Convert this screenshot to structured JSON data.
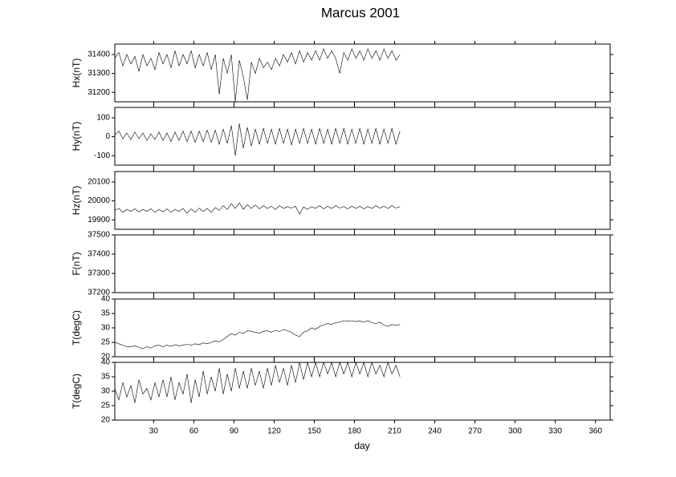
{
  "chart_data": {
    "type": "line",
    "title": "Marcus 2001",
    "xlabel": "day",
    "xlim": [
      1,
      371
    ],
    "xticks": [
      30,
      60,
      90,
      120,
      150,
      180,
      210,
      240,
      270,
      300,
      330,
      360
    ],
    "x": [
      1,
      4,
      7,
      10,
      13,
      16,
      19,
      22,
      25,
      28,
      31,
      34,
      37,
      40,
      43,
      46,
      49,
      52,
      55,
      58,
      61,
      64,
      67,
      70,
      73,
      76,
      79,
      82,
      85,
      88,
      91,
      94,
      97,
      100,
      103,
      106,
      109,
      112,
      115,
      118,
      121,
      124,
      127,
      130,
      133,
      136,
      139,
      142,
      145,
      148,
      151,
      154,
      157,
      160,
      163,
      166,
      169,
      172,
      175,
      178,
      181,
      184,
      187,
      190,
      193,
      196,
      199,
      202,
      205,
      208,
      211,
      214
    ],
    "panels": [
      {
        "ylabel": "Hx(nT)",
        "ylim": [
          31150,
          31455
        ],
        "yticks": [
          31200,
          31300,
          31400
        ],
        "series": [
          {
            "color": "#000000",
            "values": [
              31380,
              31410,
              31340,
              31400,
              31350,
              31390,
              31310,
              31400,
              31340,
              31380,
              31320,
              31410,
              31350,
              31400,
              31330,
              31420,
              31340,
              31400,
              31350,
              31420,
              31330,
              31400,
              31340,
              31410,
              31320,
              31400,
              31190,
              31380,
              31300,
              31400,
              31150,
              31370,
              31280,
              31160,
              31360,
              31300,
              31380,
              31330,
              31360,
              31320,
              31380,
              31340,
              31400,
              31360,
              31410,
              31350,
              31420,
              31360,
              31410,
              31370,
              31420,
              31370,
              31430,
              31380,
              31420,
              31380,
              31300,
              31410,
              31370,
              31430,
              31380,
              31420,
              31370,
              31430,
              31380,
              31420,
              31370,
              31430,
              31380,
              31420,
              31370,
              31400
            ]
          }
        ]
      },
      {
        "ylabel": "Hy(nT)",
        "ylim": [
          -150,
          155
        ],
        "yticks": [
          -100,
          0,
          100
        ],
        "series": [
          {
            "color": "#000000",
            "values": [
              10,
              30,
              -10,
              20,
              -15,
              25,
              -10,
              20,
              -20,
              15,
              -15,
              25,
              -20,
              20,
              -25,
              25,
              -20,
              30,
              -25,
              30,
              -30,
              30,
              -25,
              35,
              -30,
              35,
              -40,
              40,
              -35,
              60,
              -100,
              70,
              -60,
              50,
              -50,
              40,
              -40,
              45,
              -35,
              40,
              -40,
              45,
              -35,
              40,
              -45,
              40,
              -35,
              45,
              -35,
              40,
              -40,
              45,
              -35,
              40,
              -40,
              45,
              -35,
              45,
              -40,
              40,
              -35,
              45,
              -40,
              40,
              -35,
              45,
              -40,
              40,
              -35,
              45,
              -40,
              30
            ]
          }
        ]
      },
      {
        "ylabel": "Hz(nT)",
        "ylim": [
          19850,
          20155
        ],
        "yticks": [
          19900,
          20000,
          20100
        ],
        "series": [
          {
            "color": "#000000",
            "values": [
              19950,
              19960,
              19940,
              19955,
              19945,
              19958,
              19942,
              19955,
              19945,
              19958,
              19940,
              19955,
              19942,
              19958,
              19940,
              19955,
              19945,
              19960,
              19935,
              19958,
              19940,
              19962,
              19945,
              19960,
              19940,
              19965,
              19950,
              19975,
              19955,
              19985,
              19960,
              19990,
              19955,
              19980,
              19960,
              19978,
              19958,
              19975,
              19960,
              19972,
              19955,
              19975,
              19960,
              19970,
              19962,
              19972,
              19930,
              19968,
              19955,
              19970,
              19960,
              19975,
              19958,
              19972,
              19960,
              19975,
              19962,
              19970,
              19958,
              19972,
              19960,
              19972,
              19958,
              19970,
              19960,
              19975,
              19962,
              19972,
              19960,
              19975,
              19962,
              19970
            ]
          }
        ]
      },
      {
        "ylabel": "F(nT)",
        "ylim": [
          37200,
          37500
        ],
        "yticks": [
          37200,
          37300,
          37400,
          37500
        ],
        "series": []
      },
      {
        "ylabel": "T(degC)",
        "ylim": [
          20,
          40
        ],
        "yticks": [
          20,
          25,
          30,
          35,
          40
        ],
        "series": [
          {
            "color": "#000000",
            "values": [
              25,
              24.5,
              24,
              23.5,
              23.5,
              23.8,
              23.2,
              22.8,
              23.5,
              23,
              23.8,
              24,
              23.5,
              24,
              23.6,
              24.2,
              23.8,
              24,
              24.3,
              24,
              24.5,
              24.2,
              24.8,
              24.5,
              25,
              25.5,
              25.2,
              26,
              27,
              28,
              27.5,
              28.5,
              28,
              29,
              28.8,
              28.5,
              28.2,
              28.8,
              29,
              28.5,
              29.2,
              28.7,
              29.5,
              29,
              28.5,
              27.5,
              27,
              28.5,
              29,
              30,
              29.5,
              30.5,
              31,
              31.5,
              31.2,
              31.8,
              32,
              32.5,
              32.3,
              32.5,
              32.2,
              32.4,
              32,
              32.5,
              31.8,
              31.5,
              32,
              31,
              30.5,
              31.2,
              30.8,
              31.2
            ]
          }
        ]
      },
      {
        "ylabel": "T(degC)",
        "ylim": [
          20,
          40
        ],
        "yticks": [
          20,
          25,
          30,
          35,
          40
        ],
        "series": [
          {
            "color": "#000000",
            "values": [
              31,
              27,
              33,
              28,
              32,
              26,
              34,
              29,
              31,
              27,
              33,
              28,
              34,
              28,
              35,
              27,
              33,
              29,
              36,
              26,
              34,
              28,
              37,
              29,
              35,
              30,
              38,
              29,
              36,
              30,
              38,
              31,
              37,
              31,
              38,
              32,
              37,
              31,
              38,
              32,
              39,
              33,
              38,
              32,
              39,
              33,
              40,
              34,
              40,
              35,
              40,
              35,
              40,
              36,
              40,
              35,
              40,
              36,
              40,
              35,
              40,
              36,
              40,
              35,
              40,
              36,
              39,
              35,
              40,
              36,
              39,
              35
            ]
          }
        ]
      }
    ]
  }
}
